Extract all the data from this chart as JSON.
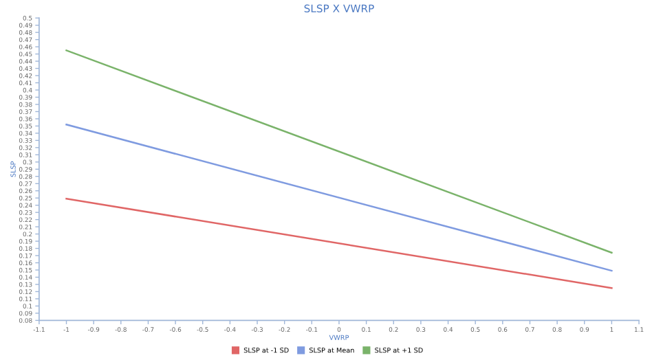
{
  "chart_data": {
    "type": "line",
    "title": "SLSP X VWRP",
    "xlabel": "VWRP",
    "ylabel": "SLSP",
    "x": [
      -1,
      1
    ],
    "series": [
      {
        "name": "SLSP at -1 SD",
        "color": "#e06666",
        "values": [
          0.249,
          0.125
        ]
      },
      {
        "name": "SLSP at Mean",
        "color": "#7f9be0",
        "values": [
          0.352,
          0.149
        ]
      },
      {
        "name": "SLSP at +1 SD",
        "color": "#7ab36a",
        "values": [
          0.455,
          0.174
        ]
      }
    ],
    "xlim": [
      -1.1,
      1.1
    ],
    "xticks": [
      -1.1,
      -1,
      -0.9,
      -0.8,
      -0.7,
      -0.6,
      -0.5,
      -0.4,
      -0.3,
      -0.2,
      -0.1,
      0,
      0.1,
      0.2,
      0.3,
      0.4,
      0.5,
      0.6,
      0.7,
      0.8,
      0.9,
      1,
      1.1
    ],
    "ylim": [
      0.08,
      0.5
    ],
    "yticks": [
      0.08,
      0.09,
      0.1,
      0.11,
      0.12,
      0.13,
      0.14,
      0.15,
      0.16,
      0.17,
      0.18,
      0.19,
      0.2,
      0.21,
      0.22,
      0.23,
      0.24,
      0.25,
      0.26,
      0.27,
      0.28,
      0.29,
      0.3,
      0.31,
      0.32,
      0.33,
      0.34,
      0.35,
      0.36,
      0.37,
      0.38,
      0.39,
      0.4,
      0.41,
      0.42,
      0.43,
      0.44,
      0.45,
      0.46,
      0.47,
      0.48,
      0.49,
      0.5
    ],
    "grid": false,
    "legend": "bottom",
    "marker": "none",
    "line_style": "solid"
  }
}
